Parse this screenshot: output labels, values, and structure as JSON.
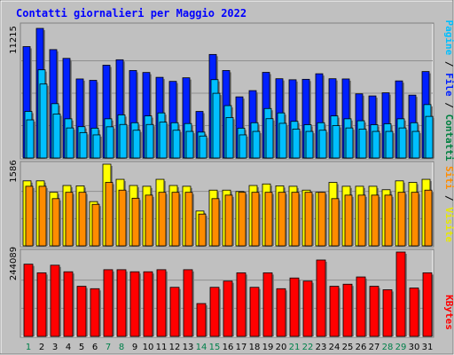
{
  "chart_data": [
    {
      "type": "bar",
      "title": "Contatti giornalieri per Maggio 2022",
      "categories": [
        "1",
        "2",
        "3",
        "4",
        "5",
        "6",
        "7",
        "8",
        "9",
        "10",
        "11",
        "12",
        "13",
        "14",
        "15",
        "16",
        "17",
        "18",
        "19",
        "20",
        "21",
        "22",
        "23",
        "24",
        "25",
        "26",
        "27",
        "28",
        "29",
        "30",
        "31"
      ],
      "weekend_days": [
        "1",
        "7",
        "8",
        "14",
        "15",
        "21",
        "22",
        "28",
        "29"
      ],
      "ymax_label": "11215",
      "ylim": [
        0,
        11215
      ],
      "legend": [
        "Pagine",
        "File",
        "Contatti"
      ],
      "series": [
        {
          "name": "Contatti",
          "color": "#0020ff",
          "values": [
            9640,
            11215,
            9380,
            8620,
            6840,
            6720,
            8030,
            8500,
            7570,
            7400,
            6980,
            6630,
            6940,
            4030,
            8960,
            7570,
            5290,
            5830,
            7410,
            6860,
            6770,
            6810,
            7290,
            6860,
            6840,
            5550,
            5370,
            5640,
            6670,
            5440,
            7480
          ]
        },
        {
          "name": "File",
          "color": "#00bfff",
          "values": [
            4030,
            7630,
            4700,
            3390,
            2710,
            2580,
            3390,
            3730,
            3050,
            3640,
            3900,
            3050,
            2980,
            2240,
            6780,
            4530,
            2580,
            3050,
            4280,
            3900,
            3170,
            2880,
            3050,
            3640,
            3390,
            3220,
            2880,
            2960,
            3390,
            3050,
            4620
          ]
        },
        {
          "name": "Pagine",
          "color": "#00bfff",
          "values": [
            3300,
            6400,
            3800,
            2600,
            2200,
            2000,
            2700,
            2900,
            2400,
            2900,
            3100,
            2400,
            2300,
            1900,
            5600,
            3500,
            2000,
            2300,
            3400,
            3000,
            2500,
            2300,
            2400,
            2800,
            2600,
            2500,
            2300,
            2300,
            2600,
            2300,
            3600
          ]
        }
      ]
    },
    {
      "type": "bar",
      "ymax_label": "1586",
      "ylim": [
        0,
        1586
      ],
      "legend": [
        "Siti",
        "Visite"
      ],
      "series": [
        {
          "name": "Visite",
          "color": "#ffff00",
          "values": [
            1262,
            1262,
            1040,
            1172,
            1165,
            859,
            1586,
            1292,
            1172,
            1157,
            1292,
            1172,
            1157,
            676,
            1082,
            1082,
            1055,
            1172,
            1202,
            1165,
            1157,
            1082,
            1040,
            1232,
            1157,
            1157,
            1157,
            1090,
            1262,
            1232,
            1292
          ]
        },
        {
          "name": "Siti",
          "color": "#ff8c00",
          "values": [
            1157,
            1157,
            917,
            1040,
            1040,
            806,
            1232,
            1082,
            925,
            985,
            1040,
            1040,
            1040,
            617,
            917,
            985,
            1040,
            1040,
            1040,
            1040,
            1040,
            1040,
            1040,
            917,
            985,
            985,
            985,
            985,
            1040,
            1040,
            1082
          ]
        }
      ]
    },
    {
      "type": "bar",
      "ymax_label": "244089",
      "ylim": [
        0,
        244089
      ],
      "legend": [
        "KBytes"
      ],
      "series": [
        {
          "name": "KBytes",
          "color": "#ff0000",
          "values": [
            209000,
            184000,
            206000,
            187000,
            145000,
            138000,
            193000,
            193000,
            187000,
            187000,
            193000,
            142000,
            193000,
            95000,
            142000,
            160000,
            184000,
            142000,
            184000,
            138000,
            169000,
            160000,
            221000,
            145000,
            151000,
            172000,
            145000,
            135000,
            244089,
            140000,
            184000
          ]
        }
      ]
    }
  ]
}
